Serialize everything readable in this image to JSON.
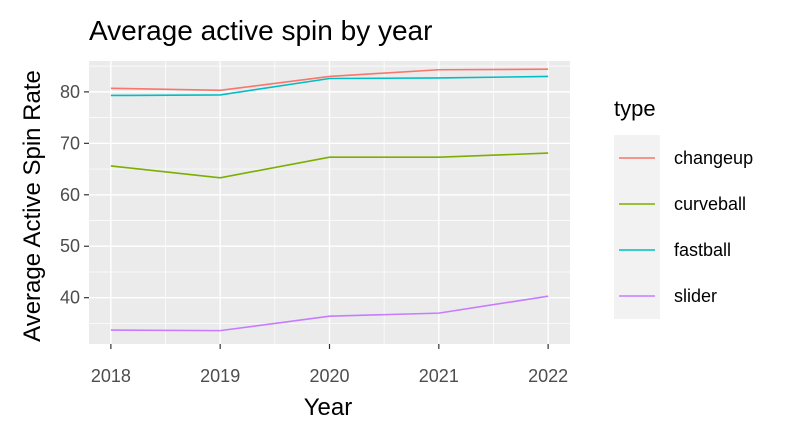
{
  "chart_data": {
    "type": "line",
    "title": "Average active spin by year",
    "xlabel": "Year",
    "ylabel": "Average Active Spin Rate",
    "x": [
      2018,
      2019,
      2020,
      2021,
      2022
    ],
    "xlim": [
      2017.8,
      2022.2
    ],
    "ylim": [
      31,
      86
    ],
    "yticks": [
      40,
      50,
      60,
      70,
      80
    ],
    "grid": true,
    "legend": {
      "title": "type",
      "position": "right"
    },
    "series": [
      {
        "name": "changeup",
        "color": "#F8766D",
        "values": [
          80.7,
          80.3,
          83.0,
          84.3,
          84.4
        ]
      },
      {
        "name": "curveball",
        "color": "#7CAE00",
        "values": [
          65.6,
          63.3,
          67.3,
          67.3,
          68.1
        ]
      },
      {
        "name": "fastball",
        "color": "#00BFC4",
        "values": [
          79.3,
          79.4,
          82.6,
          82.7,
          83.0
        ]
      },
      {
        "name": "slider",
        "color": "#C77CFF",
        "values": [
          33.7,
          33.6,
          36.4,
          37.0,
          40.3
        ]
      }
    ]
  }
}
